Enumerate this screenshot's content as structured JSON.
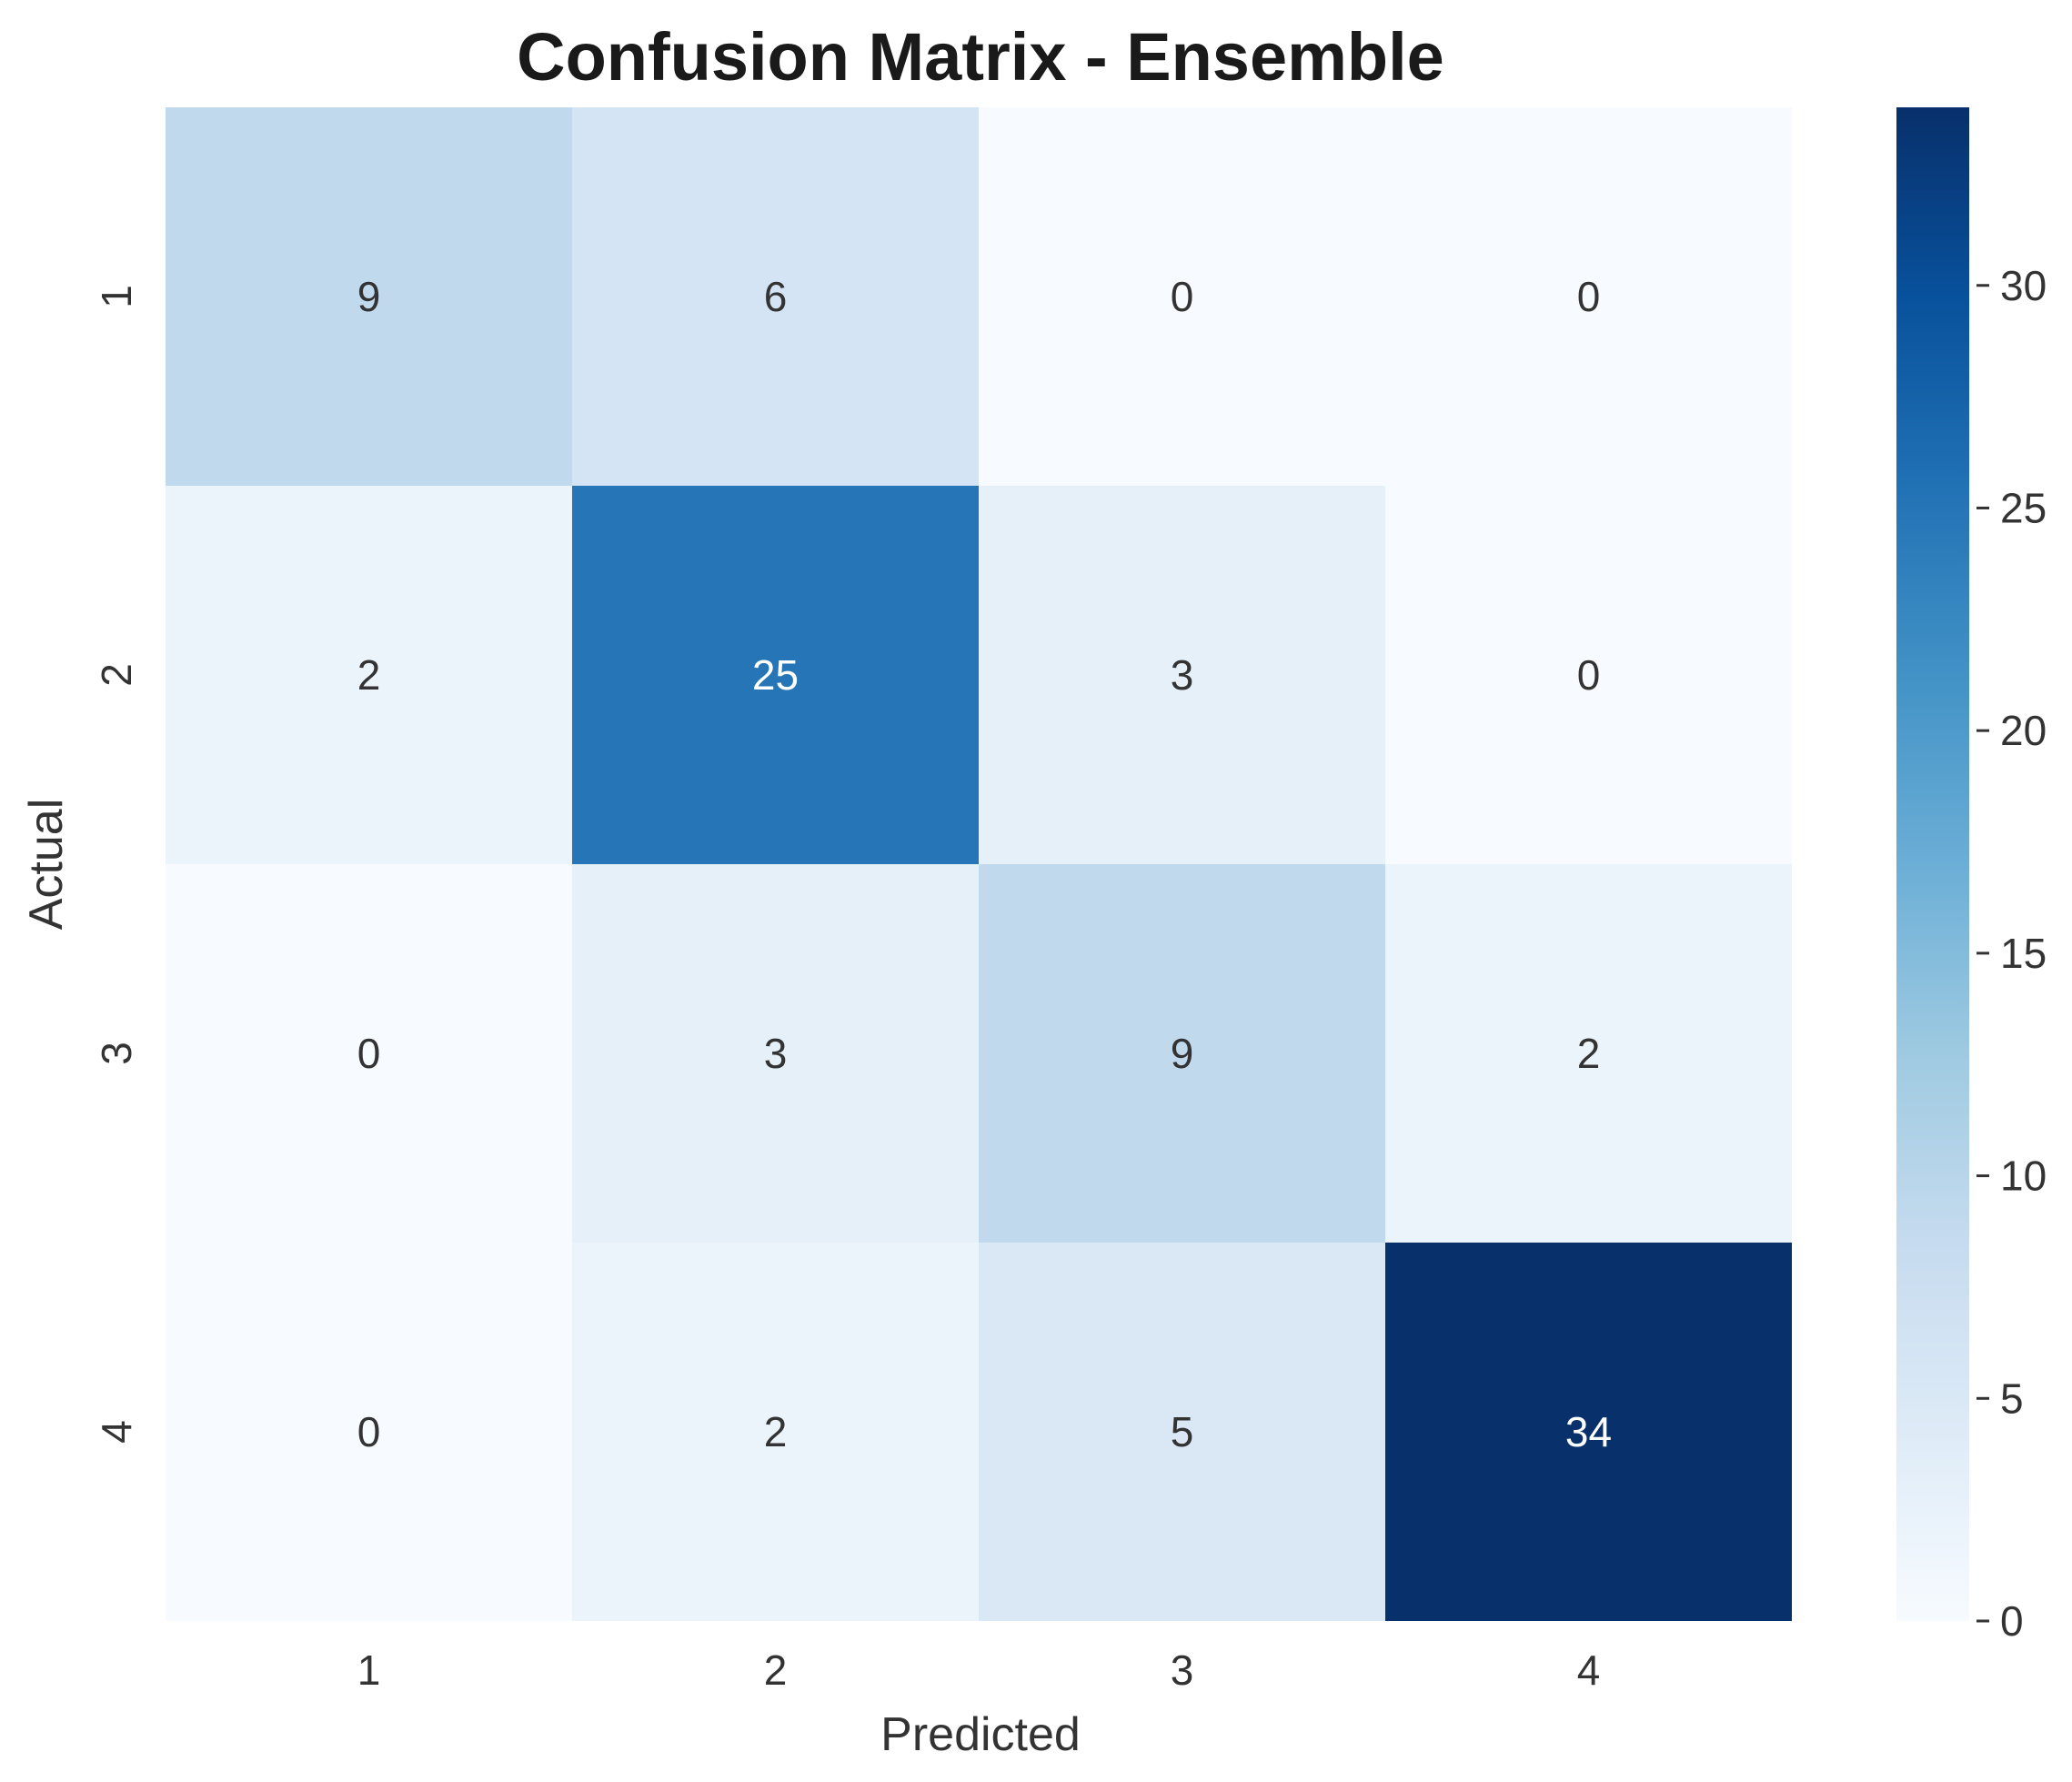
{
  "chart_data": {
    "type": "heatmap",
    "title": "Confusion Matrix - Ensemble",
    "xlabel": "Predicted",
    "ylabel": "Actual",
    "x_categories": [
      "1",
      "2",
      "3",
      "4"
    ],
    "y_categories": [
      "1",
      "2",
      "3",
      "4"
    ],
    "values": [
      [
        9,
        6,
        0,
        0
      ],
      [
        2,
        25,
        3,
        0
      ],
      [
        0,
        3,
        9,
        2
      ],
      [
        0,
        2,
        5,
        34
      ]
    ],
    "colormap": "Blues",
    "colorbar": {
      "range": [
        0,
        34
      ],
      "ticks": [
        0,
        5,
        10,
        15,
        20,
        25,
        30
      ]
    },
    "annot_dark_color": "#333333",
    "annot_light_color": "#ffffff"
  }
}
